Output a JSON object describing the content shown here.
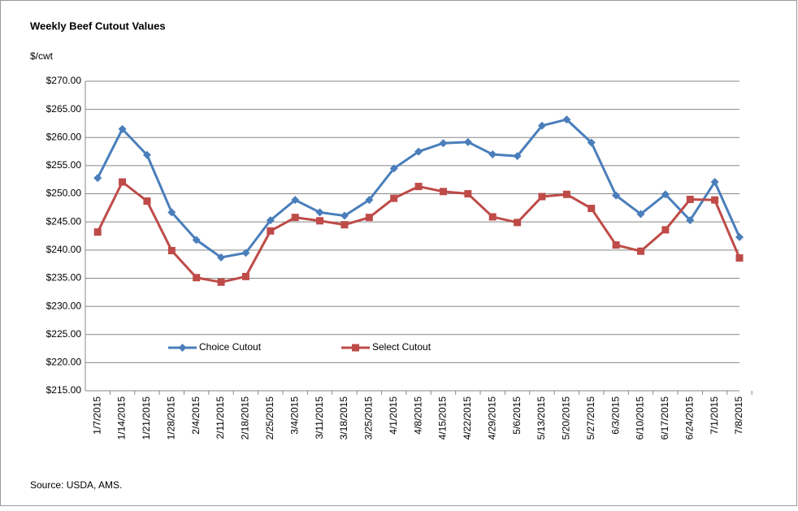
{
  "chart_data": {
    "type": "line",
    "title": "Weekly Beef Cutout Values",
    "y_label": "$/cwt",
    "source": "Source: USDA, AMS.",
    "categories": [
      "1/7/2015",
      "1/14/2015",
      "1/21/2015",
      "1/28/2015",
      "2/4/2015",
      "2/11/2015",
      "2/18/2015",
      "2/25/2015",
      "3/4/2015",
      "3/11/2015",
      "3/18/2015",
      "3/25/2015",
      "4/1/2015",
      "4/8/2015",
      "4/15/2015",
      "4/22/2015",
      "4/29/2015",
      "5/6/2015",
      "5/13/2015",
      "5/20/2015",
      "5/27/2015",
      "6/3/2015",
      "6/10/2015",
      "6/17/2015",
      "6/24/2015",
      "7/1/2015",
      "7/8/2015"
    ],
    "series": [
      {
        "name": "Choice Cutout",
        "color": "#4a7ebb",
        "marker": "diamond",
        "values": [
          252.8,
          261.5,
          256.9,
          246.7,
          241.8,
          238.7,
          239.5,
          245.3,
          248.9,
          246.7,
          246.1,
          248.9,
          254.5,
          257.5,
          259.0,
          259.2,
          257.0,
          256.7,
          262.1,
          263.2,
          259.1,
          249.7,
          246.4,
          249.9,
          245.3,
          252.1,
          242.3
        ]
      },
      {
        "name": "Select Cutout",
        "color": "#be4b48",
        "marker": "square",
        "values": [
          243.2,
          252.1,
          248.7,
          239.9,
          235.1,
          234.3,
          235.3,
          243.4,
          245.8,
          245.2,
          244.5,
          245.8,
          249.2,
          251.3,
          250.4,
          250.0,
          245.9,
          244.9,
          249.5,
          249.9,
          247.4,
          240.9,
          239.8,
          243.6,
          249.0,
          248.9,
          238.6
        ]
      }
    ],
    "ylim": [
      215,
      270
    ],
    "yticks": [
      {
        "value": 215,
        "label": "$215.00"
      },
      {
        "value": 220,
        "label": "$220.00"
      },
      {
        "value": 225,
        "label": "$225.00"
      },
      {
        "value": 230,
        "label": "$230.00"
      },
      {
        "value": 235,
        "label": "$235.00"
      },
      {
        "value": 240,
        "label": "$240.00"
      },
      {
        "value": 245,
        "label": "$245.00"
      },
      {
        "value": 250,
        "label": "$250.00"
      },
      {
        "value": 255,
        "label": "$255.00"
      },
      {
        "value": 260,
        "label": "$260.00"
      },
      {
        "value": 265,
        "label": "$265.00"
      },
      {
        "value": 270,
        "label": "$270.00"
      }
    ],
    "grid": true
  }
}
